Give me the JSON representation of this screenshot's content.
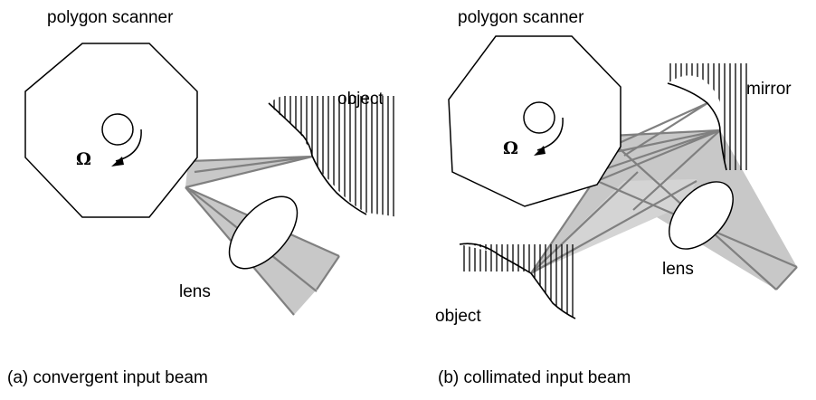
{
  "panels": [
    {
      "id": "a",
      "title": "polygon scanner",
      "rotation_symbol": "Ω",
      "object_label": "object",
      "lens_label": "lens",
      "caption": "(a) convergent input beam"
    },
    {
      "id": "b",
      "title": "polygon scanner",
      "rotation_symbol": "Ω",
      "mirror_label": "mirror",
      "lens_label": "lens",
      "object_label": "object",
      "caption": "(b) collimated input beam"
    }
  ],
  "colors": {
    "beam_fill": "#c8c8c8",
    "beam_line": "#808080",
    "outline": "#000000"
  }
}
